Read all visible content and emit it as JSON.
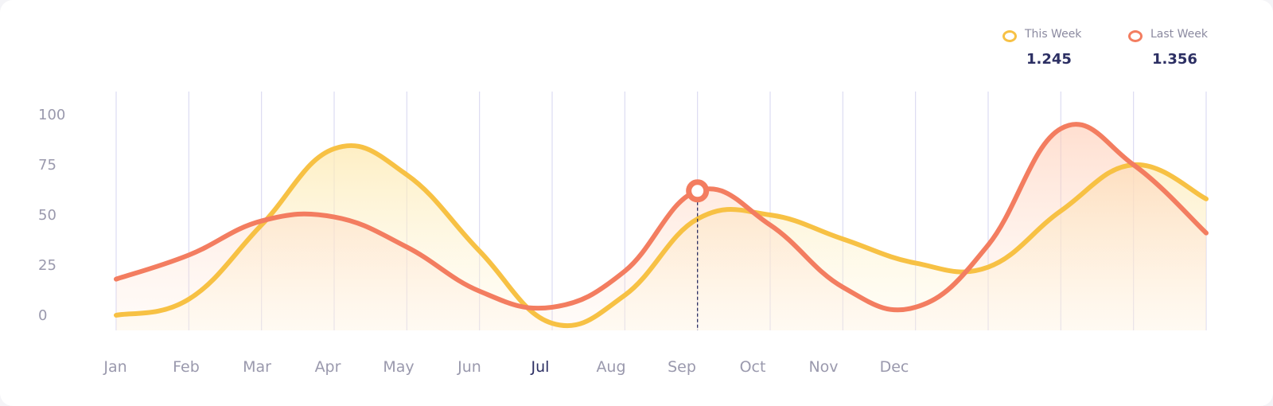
{
  "chart_data": {
    "type": "line",
    "categories": [
      "Jan",
      "Feb",
      "Mar",
      "Apr",
      "May",
      "Jun",
      "Jul",
      "Aug",
      "Sep",
      "Oct",
      "Nov",
      "Dec"
    ],
    "active_category": "Jul",
    "y_ticks": [
      0,
      25,
      50,
      75,
      100
    ],
    "ylim": [
      0,
      100
    ],
    "grid": "vertical",
    "legend_position": "top-right",
    "series": [
      {
        "name": "This Week",
        "total_label": "1.245",
        "color": "#f7c144",
        "fill_color": "#fde9b0",
        "x": [
          0,
          1,
          2,
          3,
          4,
          5,
          6,
          7,
          8,
          9,
          10,
          11,
          12,
          13,
          14,
          15
        ],
        "values": [
          0,
          8,
          45,
          83,
          70,
          32,
          -4,
          10,
          48,
          50,
          38,
          26,
          24,
          52,
          75,
          58
        ],
        "smooth": true
      },
      {
        "name": "Last Week",
        "total_label": "1.356",
        "color": "#f37d60",
        "fill_color": "#ffc9b0",
        "x": [
          0,
          1,
          2,
          3,
          4,
          5,
          6,
          7,
          8,
          9,
          10,
          11,
          12,
          13,
          14,
          15
        ],
        "values": [
          18,
          30,
          47,
          49,
          34,
          12,
          4,
          22,
          62,
          45,
          14,
          4,
          35,
          93,
          75,
          41
        ],
        "smooth": true
      }
    ],
    "highlight": {
      "series": "Last Week",
      "x": 8,
      "value": 62
    }
  }
}
